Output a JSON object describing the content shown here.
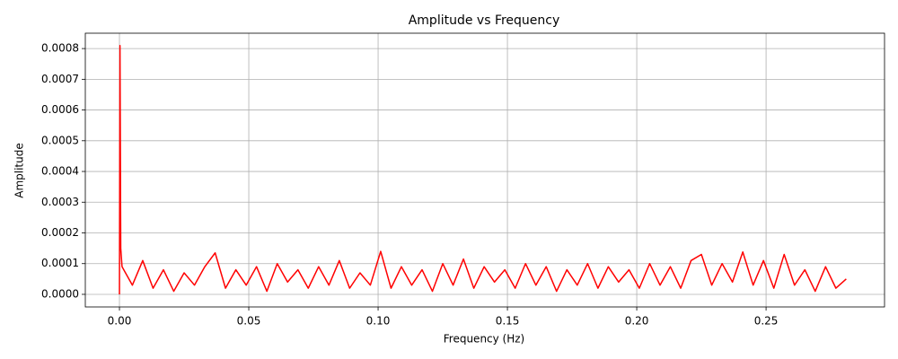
{
  "chart_data": {
    "type": "line",
    "title": "Amplitude vs Frequency",
    "xlabel": "Frequency (Hz)",
    "ylabel": "Amplitude",
    "color": "#ff0000",
    "grid": true,
    "xlim": [
      -0.0132,
      0.2958
    ],
    "ylim": [
      -4.1e-05,
      0.00085
    ],
    "xticks": [
      {
        "value": 0,
        "label": "0.00"
      },
      {
        "value": 0.05,
        "label": "0.05"
      },
      {
        "value": 0.1,
        "label": "0.10"
      },
      {
        "value": 0.15,
        "label": "0.15"
      },
      {
        "value": 0.2,
        "label": "0.20"
      },
      {
        "value": 0.25,
        "label": "0.25"
      }
    ],
    "yticks": [
      {
        "value": 0,
        "label": "0.0000"
      },
      {
        "value": 0.0001,
        "label": "0.0001"
      },
      {
        "value": 0.0002,
        "label": "0.0002"
      },
      {
        "value": 0.0003,
        "label": "0.0003"
      },
      {
        "value": 0.0004,
        "label": "0.0004"
      },
      {
        "value": 0.0005,
        "label": "0.0005"
      },
      {
        "value": 0.0006,
        "label": "0.0006"
      },
      {
        "value": 0.0007,
        "label": "0.0007"
      },
      {
        "value": 0.0008,
        "label": "0.0008"
      }
    ],
    "x": [
      0,
      0.0002,
      0.0005,
      0.001,
      0.005,
      0.009,
      0.013,
      0.017,
      0.021,
      0.025,
      0.029,
      0.033,
      0.037,
      0.041,
      0.045,
      0.049,
      0.053,
      0.057,
      0.061,
      0.065,
      0.069,
      0.073,
      0.077,
      0.081,
      0.085,
      0.089,
      0.093,
      0.097,
      0.101,
      0.105,
      0.109,
      0.113,
      0.117,
      0.121,
      0.125,
      0.129,
      0.133,
      0.137,
      0.141,
      0.145,
      0.149,
      0.153,
      0.157,
      0.161,
      0.165,
      0.169,
      0.173,
      0.177,
      0.181,
      0.185,
      0.189,
      0.193,
      0.197,
      0.201,
      0.205,
      0.209,
      0.213,
      0.217,
      0.221,
      0.225,
      0.229,
      0.233,
      0.237,
      0.241,
      0.245,
      0.249,
      0.253,
      0.257,
      0.261,
      0.265,
      0.269,
      0.273,
      0.277,
      0.281
    ],
    "values": [
      0,
      0.00081,
      0.00015,
      9e-05,
      3e-05,
      0.00011,
      2e-05,
      8e-05,
      1e-05,
      7e-05,
      3e-05,
      9e-05,
      0.000135,
      2e-05,
      8e-05,
      3e-05,
      9e-05,
      1e-05,
      0.0001,
      4e-05,
      8e-05,
      2e-05,
      9e-05,
      3e-05,
      0.00011,
      2e-05,
      7e-05,
      3e-05,
      0.00014,
      2e-05,
      9e-05,
      3e-05,
      8e-05,
      1e-05,
      0.0001,
      3e-05,
      0.000115,
      2e-05,
      9e-05,
      4e-05,
      8e-05,
      2e-05,
      0.0001,
      3e-05,
      9e-05,
      1e-05,
      8e-05,
      3e-05,
      0.0001,
      2e-05,
      9e-05,
      4e-05,
      8e-05,
      2e-05,
      0.0001,
      3e-05,
      9e-05,
      2e-05,
      0.00011,
      0.00013,
      3e-05,
      0.0001,
      4e-05,
      0.000138,
      3e-05,
      0.00011,
      2e-05,
      0.00013,
      3e-05,
      8e-05,
      1e-05,
      9e-05,
      2e-05,
      5e-05
    ]
  }
}
